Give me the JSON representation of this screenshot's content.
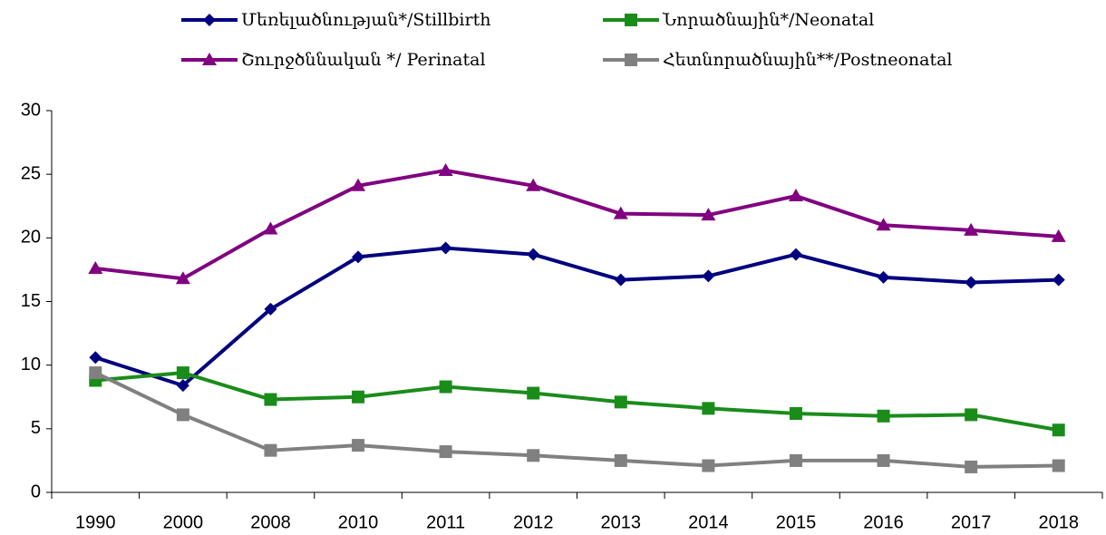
{
  "chart_data": {
    "type": "line",
    "categories": [
      "1990",
      "2000",
      "2008",
      "2010",
      "2011",
      "2012",
      "2013",
      "2014",
      "2015",
      "2016",
      "2017",
      "2018"
    ],
    "series": [
      {
        "name": "Մեռելածնության*/Stillbirth",
        "color": "#000080",
        "marker": "diamond",
        "values": [
          10.6,
          8.4,
          14.4,
          18.5,
          19.2,
          18.7,
          16.7,
          17.0,
          18.7,
          16.9,
          16.5,
          16.7
        ]
      },
      {
        "name": "Նորածնային*/Neonatal",
        "color": "#1a8c1a",
        "marker": "square",
        "values": [
          8.8,
          9.4,
          7.3,
          7.5,
          8.3,
          7.8,
          7.1,
          6.6,
          6.2,
          6.0,
          6.1,
          4.9
        ]
      },
      {
        "name": "Շուրջծննական */ Perinatal",
        "color": "#800080",
        "marker": "triangle",
        "values": [
          17.6,
          16.8,
          20.7,
          24.1,
          25.3,
          24.1,
          21.9,
          21.8,
          23.3,
          21.0,
          20.6,
          20.1
        ]
      },
      {
        "name": "Հետնորածնային**/Postneonatal",
        "color": "#808080",
        "marker": "square",
        "values": [
          9.4,
          6.1,
          3.3,
          3.7,
          3.2,
          2.9,
          2.5,
          2.1,
          2.5,
          2.5,
          2.0,
          2.1
        ]
      }
    ],
    "ylim": [
      0,
      30
    ],
    "yticks": [
      0,
      5,
      10,
      15,
      20,
      25,
      30
    ],
    "grid": false,
    "legend": "top"
  }
}
